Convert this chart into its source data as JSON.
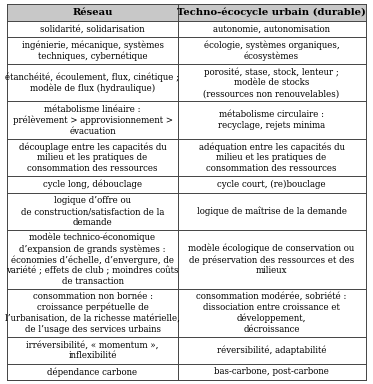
{
  "col1_header": "Réseau",
  "col2_header": "Techno-écocycle urbain (durable)",
  "rows": [
    [
      "solidarité, solidarisation",
      "autonomie, autonomisation"
    ],
    [
      "ingénierie, mécanique, systèmes\ntechniques, cybernétique",
      "écologie, systèmes organiques,\nécosystèmes"
    ],
    [
      "étanchéité, écoulement, flux, cinétique ;\nmodèle de flux (hydraulique)",
      "porosité, stase, stock, lenteur ;\nmodèle de stocks\n(ressources non renouvelables)"
    ],
    [
      "métabolisme linéaire :\nprélèvement > approvisionnement >\névacuation",
      "métabolisme circulaire :\nrecyclage, rejets minima"
    ],
    [
      "découplage entre les capacités du\nmilieu et les pratiques de\nconsommation des ressources",
      "adéquation entre les capacités du\nmilieu et les pratiques de\nconsommation des ressources"
    ],
    [
      "cycle long, débouclage",
      "cycle court, (re)bouclage"
    ],
    [
      "logique d’offre ou\nde construction/satisfaction de la\ndemande",
      "logique de maîtrise de la demande"
    ],
    [
      "modèle technico-économique\nd’expansion de grands systèmes :\néconomies d’échelle, d’envergure, de\nvariété ; effets de club ; moindres coûts\nde transaction",
      "modèle écologique de conservation ou\nde préservation des ressources et des\nmilieux"
    ],
    [
      "consommation non bornée :\ncroissance perpétuelle de\nl’urbanisation, de la richesse matérielle,\nde l’usage des services urbains",
      "consommation modérée, sobriété :\ndissociation entre croissance et\ndéveloppement,\ndécroissance"
    ],
    [
      "irréversibilité, « momentum »,\ninflexibilité",
      "réversibilité, adaptabilité"
    ],
    [
      "dépendance carbone",
      "bas-carbone, post-carbone"
    ]
  ],
  "row_line_counts": [
    1,
    2,
    3,
    3,
    3,
    1,
    3,
    5,
    4,
    2,
    1
  ],
  "header_bg": "#c8c8c8",
  "row_bg": "#ffffff",
  "border_color": "#444444",
  "header_fontsize": 7.2,
  "cell_fontsize": 6.2,
  "col_split": 0.475,
  "figsize": [
    3.73,
    3.84
  ],
  "dpi": 100
}
